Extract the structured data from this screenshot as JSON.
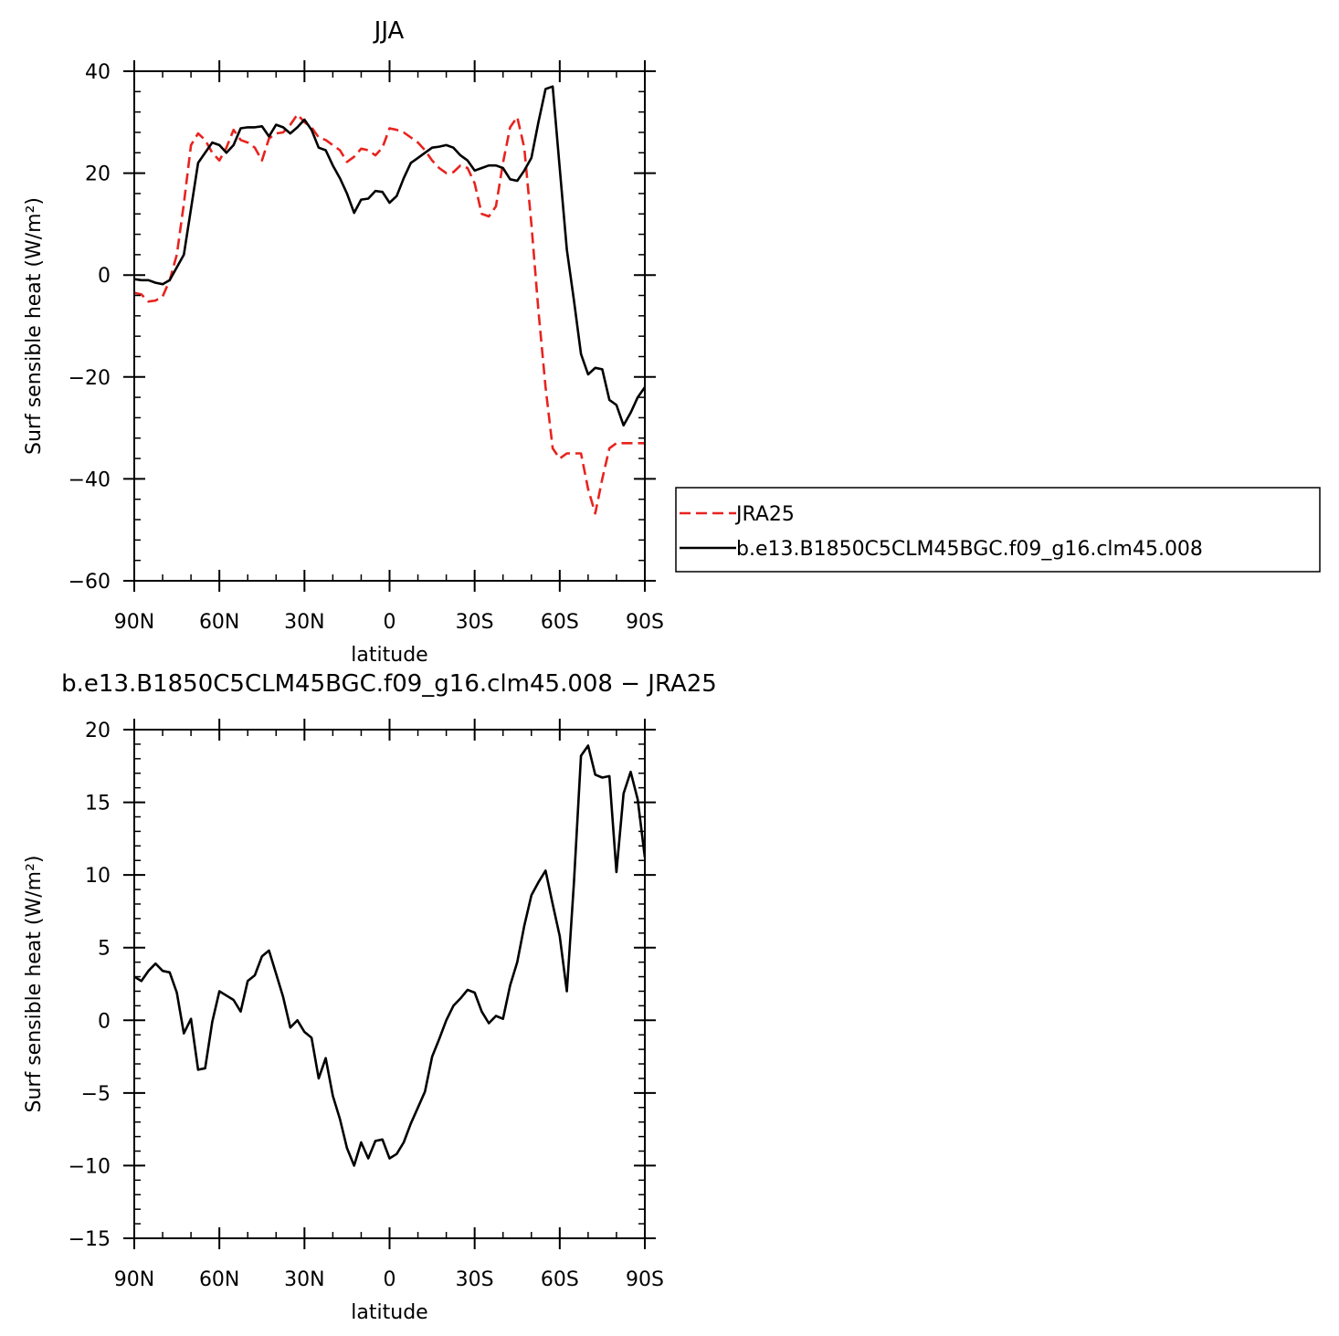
{
  "chart_data": [
    {
      "type": "line",
      "title": "JJA",
      "xlabel": "latitude",
      "ylabel": "Surf sensible heat (W/m²)",
      "xlim": [
        90,
        -90
      ],
      "ylim": [
        -60,
        40
      ],
      "yticks": [
        -60,
        -40,
        -20,
        0,
        20,
        40
      ],
      "ytick_labels": [
        "−60",
        "−40",
        "−20",
        "0",
        "20",
        "40"
      ],
      "xticks": [
        90,
        60,
        30,
        0,
        -30,
        -60,
        -90
      ],
      "xtick_labels": [
        "90N",
        "60N",
        "30N",
        "0",
        "30S",
        "60S",
        "90S"
      ],
      "legend_position": "right",
      "series": [
        {
          "name": "JRA25",
          "color": "#e8231e",
          "dash": "dashed",
          "x": [
            90,
            87.5,
            85,
            82.5,
            80,
            77.5,
            75,
            72.5,
            70,
            67.5,
            65,
            62.5,
            60,
            57.5,
            55,
            52.5,
            50,
            47.5,
            45,
            42.5,
            40,
            37.5,
            35,
            32.5,
            30,
            27.5,
            25,
            22.5,
            20,
            17.5,
            15,
            12.5,
            10,
            7.5,
            5,
            2.5,
            0,
            -2.5,
            -5,
            -7.5,
            -10,
            -12.5,
            -15,
            -17.5,
            -20,
            -22.5,
            -25,
            -27.5,
            -30,
            -32.5,
            -35,
            -37.5,
            -40,
            -42.5,
            -45,
            -47.5,
            -50,
            -52.5,
            -55,
            -57.5,
            -60,
            -62.5,
            -65,
            -67.5,
            -70,
            -72.5,
            -75,
            -77.5,
            -80,
            -82.5,
            -85,
            -87.5,
            -90
          ],
          "y": [
            -3.5,
            -3.8,
            -5.2,
            -5.0,
            -4.2,
            -1.0,
            4.0,
            14.0,
            25.5,
            27.8,
            26.5,
            24.0,
            22.5,
            25.0,
            28.5,
            26.5,
            26.0,
            25.0,
            22.5,
            26.8,
            27.8,
            28.0,
            29.5,
            31.5,
            30.0,
            29.0,
            27.0,
            26.5,
            25.5,
            24.5,
            22.2,
            23.2,
            24.8,
            24.5,
            23.5,
            25.0,
            28.8,
            28.5,
            28.0,
            27.0,
            26.0,
            24.5,
            22.5,
            21.0,
            20.0,
            20.2,
            21.5,
            21.0,
            18.0,
            12.0,
            11.5,
            13.5,
            22.0,
            29.0,
            31.0,
            25.0,
            10.0,
            -7.0,
            -22.0,
            -34.0,
            -36.0,
            -35.0,
            -35.0,
            -35.0,
            -42.0,
            -46.8,
            -40.0,
            -34.0,
            -33.0,
            -33.0,
            -33.0,
            -33.0,
            -33.0
          ]
        },
        {
          "name": "b.e13.B1850C5CLM45BGC.f09_g16.clm45.008",
          "color": "#000000",
          "dash": "solid",
          "x": [
            90,
            87.5,
            85,
            82.5,
            80,
            77.5,
            75,
            72.5,
            70,
            67.5,
            65,
            62.5,
            60,
            57.5,
            55,
            52.5,
            50,
            47.5,
            45,
            42.5,
            40,
            37.5,
            35,
            32.5,
            30,
            27.5,
            25,
            22.5,
            20,
            17.5,
            15,
            12.5,
            10,
            7.5,
            5,
            2.5,
            0,
            -2.5,
            -5,
            -7.5,
            -10,
            -12.5,
            -15,
            -17.5,
            -20,
            -22.5,
            -25,
            -27.5,
            -30,
            -32.5,
            -35,
            -37.5,
            -40,
            -42.5,
            -45,
            -47.5,
            -50,
            -52.5,
            -55,
            -57.5,
            -60,
            -62.5,
            -65,
            -67.5,
            -70,
            -72.5,
            -75,
            -77.5,
            -80,
            -82.5,
            -85,
            -87.5,
            -90
          ],
          "y": [
            -0.8,
            -1.0,
            -1.0,
            -1.5,
            -1.8,
            -1.0,
            1.5,
            4.0,
            13.0,
            22.0,
            24.0,
            26.0,
            25.5,
            24.0,
            25.5,
            28.8,
            29.0,
            29.0,
            29.2,
            27.2,
            29.5,
            29.0,
            27.8,
            29.0,
            30.5,
            28.5,
            25.0,
            24.5,
            21.5,
            19.0,
            16.0,
            12.2,
            14.8,
            15.0,
            16.5,
            16.3,
            14.2,
            15.5,
            19.0,
            22.0,
            23.0,
            24.0,
            25.0,
            25.2,
            25.5,
            25.0,
            23.5,
            22.5,
            20.5,
            21.0,
            21.5,
            21.5,
            21.0,
            18.8,
            18.5,
            20.5,
            23.0,
            30.0,
            36.5,
            37.0,
            21.0,
            5.0,
            -5.0,
            -15.5,
            -19.5,
            -18.2,
            -18.5,
            -24.5,
            -25.5,
            -29.5,
            -27.0,
            -24.0,
            -22.0
          ]
        }
      ]
    },
    {
      "type": "line",
      "title": "b.e13.B1850C5CLM45BGC.f09_g16.clm45.008 − JRA25",
      "xlabel": "latitude",
      "ylabel": "Surf sensible heat (W/m²)",
      "xlim": [
        90,
        -90
      ],
      "ylim": [
        -15,
        20
      ],
      "yticks": [
        -15,
        -10,
        -5,
        0,
        5,
        10,
        15,
        20
      ],
      "ytick_labels": [
        "−15",
        "−10",
        "−5",
        "0",
        "5",
        "10",
        "15",
        "20"
      ],
      "xticks": [
        90,
        60,
        30,
        0,
        -30,
        -60,
        -90
      ],
      "xtick_labels": [
        "90N",
        "60N",
        "30N",
        "0",
        "30S",
        "60S",
        "90S"
      ],
      "series": [
        {
          "color": "#000000",
          "dash": "solid",
          "x": [
            90,
            87.5,
            85,
            82.5,
            80,
            77.5,
            75,
            72.5,
            70,
            67.5,
            65,
            62.5,
            60,
            57.5,
            55,
            52.5,
            50,
            47.5,
            45,
            42.5,
            40,
            37.5,
            35,
            32.5,
            30,
            27.5,
            25,
            22.5,
            20,
            17.5,
            15,
            12.5,
            10,
            7.5,
            5,
            2.5,
            0,
            -2.5,
            -5,
            -7.5,
            -10,
            -12.5,
            -15,
            -17.5,
            -20,
            -22.5,
            -25,
            -27.5,
            -30,
            -32.5,
            -35,
            -37.5,
            -40,
            -42.5,
            -45,
            -47.5,
            -50,
            -52.5,
            -55,
            -57.5,
            -60,
            -62.5,
            -65,
            -67.5,
            -70,
            -72.5,
            -75,
            -77.5,
            -80,
            -82.5,
            -85,
            -87.5,
            -90
          ],
          "y": [
            3.0,
            2.7,
            3.4,
            3.9,
            3.4,
            3.3,
            1.9,
            -0.9,
            0.1,
            -3.4,
            -3.3,
            -0.1,
            2.0,
            1.7,
            1.4,
            0.6,
            2.7,
            3.1,
            4.4,
            4.8,
            3.2,
            1.6,
            -0.5,
            0.0,
            -0.8,
            -1.2,
            -4.0,
            -2.6,
            -5.2,
            -6.8,
            -8.8,
            -10.0,
            -8.4,
            -9.5,
            -8.3,
            -8.2,
            -9.5,
            -9.2,
            -8.4,
            -7.1,
            -6.0,
            -4.9,
            -2.5,
            -1.3,
            0.0,
            1.0,
            1.5,
            2.1,
            1.9,
            0.6,
            -0.2,
            0.3,
            0.1,
            2.4,
            4.0,
            6.5,
            8.6,
            9.5,
            10.3,
            8.0,
            5.8,
            2.0,
            9.5,
            18.2,
            18.9,
            16.9,
            16.7,
            16.8,
            10.2,
            15.6,
            17.1,
            15.2,
            11.2
          ]
        }
      ]
    }
  ]
}
